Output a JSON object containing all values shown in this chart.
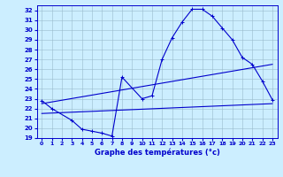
{
  "xlabel": "Graphe des températures (°c)",
  "bg_color": "#cceeff",
  "line_color": "#0000cc",
  "grid_color": "#99bbcc",
  "ylim": [
    19,
    32.5
  ],
  "xlim": [
    -0.5,
    23.5
  ],
  "yticks": [
    19,
    20,
    21,
    22,
    23,
    24,
    25,
    26,
    27,
    28,
    29,
    30,
    31,
    32
  ],
  "xticks": [
    0,
    1,
    2,
    3,
    4,
    5,
    6,
    7,
    8,
    9,
    10,
    11,
    12,
    13,
    14,
    15,
    16,
    17,
    18,
    19,
    20,
    21,
    22,
    23
  ],
  "main_x": [
    0,
    1,
    3,
    4,
    5,
    6,
    7,
    8,
    10,
    11,
    12,
    13,
    14,
    15,
    16,
    17,
    18,
    19,
    20,
    21,
    22,
    23
  ],
  "main_y": [
    22.8,
    22.0,
    20.8,
    19.9,
    19.7,
    19.5,
    19.2,
    25.2,
    23.0,
    23.3,
    27.0,
    29.2,
    30.8,
    32.1,
    32.1,
    31.4,
    30.2,
    29.0,
    27.2,
    26.5,
    24.8,
    22.9
  ],
  "trend1_x": [
    0,
    23
  ],
  "trend1_y": [
    22.5,
    26.5
  ],
  "trend2_x": [
    0,
    23
  ],
  "trend2_y": [
    21.5,
    22.5
  ]
}
